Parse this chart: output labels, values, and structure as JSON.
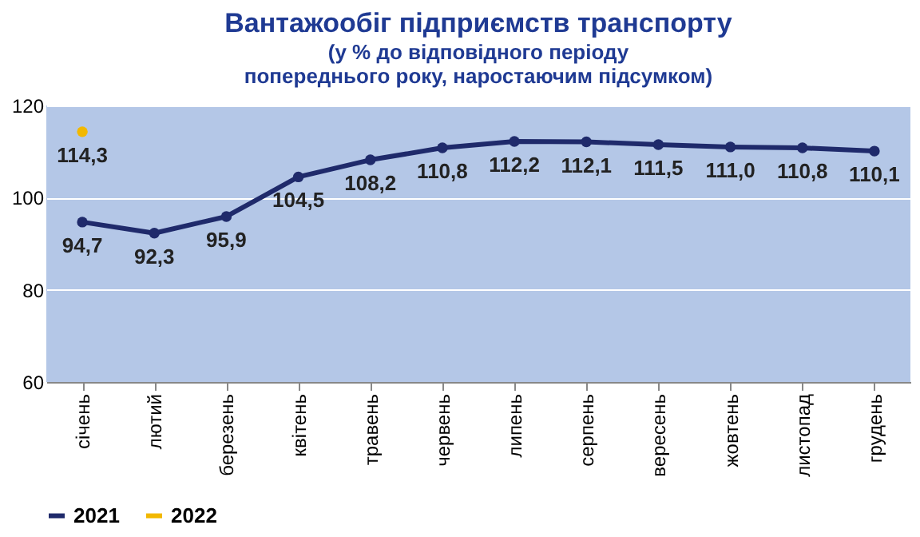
{
  "chart_data": {
    "type": "line",
    "title": "Вантажообіг підприємств  транспорту",
    "subtitle": "(у % до відповідного  періоду\nпопереднього року, наростаючим підсумком)",
    "categories": [
      "січень",
      "лютий",
      "березень",
      "квітень",
      "травень",
      "червень",
      "липень",
      "серпень",
      "вересень",
      "жовтень",
      "листопад",
      "грудень"
    ],
    "series": [
      {
        "name": "2021",
        "color": "#1f2a6b",
        "values": [
          94.7,
          92.3,
          95.9,
          104.5,
          108.2,
          110.8,
          112.2,
          112.1,
          111.5,
          111.0,
          110.8,
          110.1
        ],
        "value_labels": [
          "94,7",
          "92,3",
          "95,9",
          "104,5",
          "108,2",
          "110,8",
          "112,2",
          "112,1",
          "111,5",
          "111,0",
          "110,8",
          "110,1"
        ]
      },
      {
        "name": "2022",
        "color": "#f2b800",
        "values": [
          114.3,
          null,
          null,
          null,
          null,
          null,
          null,
          null,
          null,
          null,
          null,
          null
        ],
        "value_labels": [
          "114,3",
          null,
          null,
          null,
          null,
          null,
          null,
          null,
          null,
          null,
          null,
          null
        ]
      }
    ],
    "ylim": [
      60,
      120
    ],
    "yticks": [
      60,
      80,
      100,
      120
    ],
    "grid": "y",
    "legend": "bottom",
    "marker": "circle",
    "line_style": "solid"
  }
}
